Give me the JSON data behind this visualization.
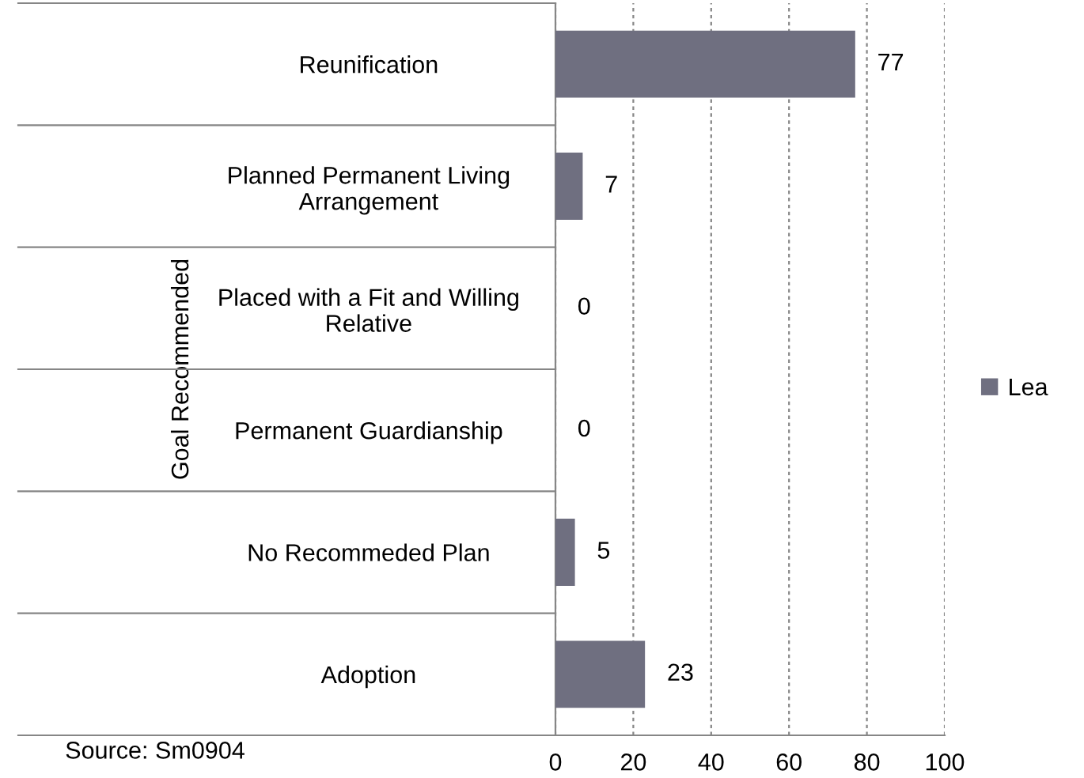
{
  "chart_data": {
    "type": "bar",
    "orientation": "horizontal",
    "ylabel": "Goal Recommended",
    "categories": [
      "Reunification",
      "Planned Permanent Living Arrangement",
      "Placed with a Fit and Willing Relative",
      "Permanent Guardianship",
      "No Recommeded Plan",
      "Adoption"
    ],
    "series": [
      {
        "name": "Lea",
        "color": "#6f6f80",
        "values": [
          77,
          7,
          0,
          0,
          5,
          23
        ]
      }
    ],
    "xlim": [
      0,
      100
    ],
    "xticks": [
      0,
      20,
      40,
      60,
      80,
      100
    ],
    "grid": "x",
    "legend": "right",
    "data_labels": true,
    "annotations": [
      "Source: Sm0904"
    ]
  }
}
